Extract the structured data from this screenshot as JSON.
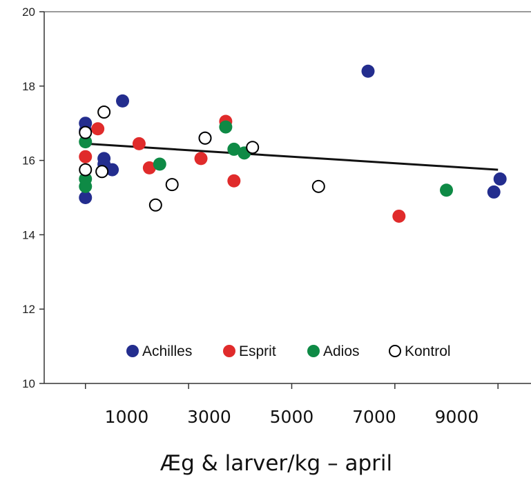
{
  "chart_data": {
    "type": "scatter",
    "title": "",
    "xlabel": "Æg & larver/kg – april",
    "ylabel": "",
    "xlim": [
      -1000,
      10800
    ],
    "ylim": [
      10,
      20
    ],
    "y_ticks": [
      10,
      12,
      14,
      16,
      18,
      20
    ],
    "x_ticks_minor": [
      0,
      2500,
      5000,
      7500,
      10000
    ],
    "x_tick_labels": [
      "1000",
      "3000",
      "5000",
      "7000",
      "9000"
    ],
    "x_tick_label_values": [
      1000,
      3000,
      5000,
      7000,
      9000
    ],
    "grid": false,
    "legend_position": "bottom",
    "series": [
      {
        "name": "Achilles",
        "color": "#232d8e",
        "marker": "filled",
        "points": [
          [
            0,
            17.0
          ],
          [
            0,
            16.8
          ],
          [
            0,
            15.0
          ],
          [
            450,
            16.05
          ],
          [
            450,
            15.9
          ],
          [
            650,
            15.75
          ],
          [
            900,
            17.6
          ],
          [
            2900,
            16.6
          ],
          [
            6850,
            18.4
          ],
          [
            9900,
            15.15
          ],
          [
            10050,
            15.5
          ]
        ]
      },
      {
        "name": "Esprit",
        "color": "#e02b2b",
        "marker": "filled",
        "points": [
          [
            0,
            16.1
          ],
          [
            300,
            16.85
          ],
          [
            1300,
            16.45
          ],
          [
            1550,
            15.8
          ],
          [
            2800,
            16.05
          ],
          [
            3400,
            17.05
          ],
          [
            3600,
            15.45
          ],
          [
            7600,
            14.5
          ]
        ]
      },
      {
        "name": "Adios",
        "color": "#0e8a45",
        "marker": "filled",
        "points": [
          [
            0,
            16.5
          ],
          [
            0,
            15.5
          ],
          [
            0,
            15.3
          ],
          [
            1800,
            15.9
          ],
          [
            3400,
            16.9
          ],
          [
            3600,
            16.3
          ],
          [
            3850,
            16.2
          ],
          [
            8750,
            15.2
          ]
        ]
      },
      {
        "name": "Kontrol",
        "color": "#000000",
        "marker": "open",
        "points": [
          [
            0,
            16.75
          ],
          [
            0,
            15.75
          ],
          [
            450,
            17.3
          ],
          [
            400,
            15.7
          ],
          [
            1700,
            14.8
          ],
          [
            2100,
            15.35
          ],
          [
            2900,
            16.6
          ],
          [
            4050,
            16.35
          ],
          [
            5650,
            15.3
          ]
        ]
      }
    ],
    "trendline": {
      "x": [
        0,
        10000
      ],
      "y": [
        16.45,
        15.75
      ]
    }
  }
}
